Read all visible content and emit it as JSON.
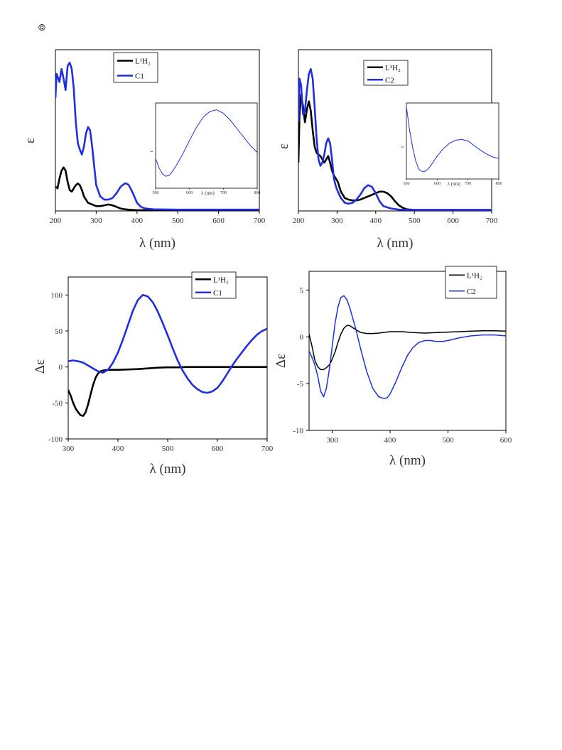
{
  "page_mark": {
    "icon": "circled-symbol-icon",
    "glyph": "⦾"
  },
  "chart_data": [
    {
      "type": "line",
      "xlabel": "λ (nm)",
      "ylabel": "ε",
      "xlim": [
        200,
        700
      ],
      "ylim": [
        0,
        1
      ],
      "y_tick_labels_shown": false,
      "x_ticks": [
        200,
        300,
        400,
        500,
        600,
        700
      ],
      "legend": {
        "placement": "top-center",
        "entries": [
          "L¹H₂",
          "C1"
        ]
      },
      "series": [
        {
          "name": "L¹H₂",
          "color": "#000000",
          "x": [
            200,
            205,
            210,
            215,
            220,
            225,
            230,
            235,
            240,
            245,
            250,
            255,
            260,
            265,
            270,
            275,
            280,
            290,
            300,
            310,
            320,
            330,
            340,
            350,
            360,
            370,
            380,
            400,
            450,
            500,
            550,
            600,
            650,
            700
          ],
          "y": [
            0.15,
            0.14,
            0.2,
            0.25,
            0.27,
            0.25,
            0.18,
            0.13,
            0.12,
            0.14,
            0.16,
            0.17,
            0.16,
            0.13,
            0.09,
            0.07,
            0.05,
            0.04,
            0.03,
            0.03,
            0.035,
            0.04,
            0.035,
            0.025,
            0.015,
            0.01,
            0.008,
            0.005,
            0.005,
            0.005,
            0.005,
            0.005,
            0.005,
            0.005
          ]
        },
        {
          "name": "C1",
          "color": "#1f2fe0",
          "x": [
            200,
            203,
            206,
            210,
            215,
            220,
            225,
            230,
            235,
            240,
            245,
            250,
            255,
            260,
            265,
            270,
            275,
            280,
            285,
            290,
            295,
            300,
            310,
            320,
            330,
            340,
            350,
            360,
            370,
            375,
            380,
            390,
            400,
            410,
            420,
            440,
            500,
            600,
            700
          ],
          "y": [
            0.7,
            0.85,
            0.83,
            0.8,
            0.88,
            0.82,
            0.75,
            0.9,
            0.92,
            0.88,
            0.76,
            0.55,
            0.42,
            0.38,
            0.35,
            0.4,
            0.48,
            0.52,
            0.5,
            0.4,
            0.28,
            0.16,
            0.09,
            0.07,
            0.07,
            0.08,
            0.11,
            0.15,
            0.17,
            0.17,
            0.16,
            0.11,
            0.05,
            0.025,
            0.015,
            0.01,
            0.008,
            0.008,
            0.008
          ]
        }
      ],
      "inset": {
        "type": "line",
        "xlabel": "λ (nm)",
        "ylabel": "ε",
        "xlim": [
          500,
          800
        ],
        "x_ticks": [
          500,
          600,
          700,
          800
        ],
        "series": [
          {
            "name": "C1",
            "color": "#1f2fe0",
            "x": [
              500,
              510,
              520,
              530,
              540,
              550,
              560,
              580,
              600,
              620,
              640,
              660,
              680,
              700,
              720,
              740,
              760,
              780,
              800
            ],
            "y": [
              0.35,
              0.24,
              0.17,
              0.14,
              0.15,
              0.2,
              0.26,
              0.4,
              0.56,
              0.71,
              0.83,
              0.9,
              0.92,
              0.88,
              0.8,
              0.7,
              0.6,
              0.5,
              0.42
            ]
          }
        ]
      }
    },
    {
      "type": "line",
      "xlabel": "λ (nm)",
      "ylabel": "ε",
      "xlim": [
        200,
        700
      ],
      "ylim": [
        0,
        1
      ],
      "y_tick_labels_shown": false,
      "x_ticks": [
        200,
        300,
        400,
        500,
        600,
        700
      ],
      "legend": {
        "placement": "top-left",
        "entries": [
          "L²H₂",
          "C2"
        ]
      },
      "series": [
        {
          "name": "L²H₂",
          "color": "#000000",
          "x": [
            200,
            203,
            207,
            212,
            217,
            222,
            227,
            232,
            237,
            242,
            247,
            252,
            257,
            262,
            267,
            272,
            277,
            282,
            287,
            292,
            297,
            302,
            310,
            320,
            330,
            340,
            350,
            360,
            370,
            380,
            390,
            400,
            410,
            420,
            430,
            440,
            450,
            460,
            470,
            480,
            500,
            550,
            600,
            650,
            700
          ],
          "y": [
            0.3,
            0.6,
            0.72,
            0.65,
            0.55,
            0.63,
            0.68,
            0.62,
            0.5,
            0.4,
            0.36,
            0.35,
            0.34,
            0.32,
            0.3,
            0.32,
            0.34,
            0.3,
            0.25,
            0.22,
            0.2,
            0.18,
            0.12,
            0.08,
            0.07,
            0.065,
            0.065,
            0.07,
            0.08,
            0.09,
            0.1,
            0.11,
            0.12,
            0.12,
            0.11,
            0.09,
            0.06,
            0.035,
            0.02,
            0.01,
            0.006,
            0.006,
            0.006,
            0.006,
            0.006
          ]
        },
        {
          "name": "C2",
          "color": "#1f2fe0",
          "x": [
            200,
            203,
            207,
            212,
            217,
            222,
            227,
            232,
            237,
            242,
            247,
            252,
            257,
            262,
            267,
            272,
            277,
            282,
            287,
            292,
            297,
            302,
            310,
            320,
            330,
            340,
            350,
            360,
            370,
            380,
            390,
            400,
            410,
            420,
            440,
            460,
            500,
            600,
            700
          ],
          "y": [
            0.55,
            0.82,
            0.78,
            0.6,
            0.62,
            0.75,
            0.85,
            0.88,
            0.82,
            0.65,
            0.45,
            0.32,
            0.28,
            0.3,
            0.35,
            0.42,
            0.45,
            0.42,
            0.32,
            0.2,
            0.15,
            0.12,
            0.08,
            0.05,
            0.045,
            0.05,
            0.07,
            0.1,
            0.14,
            0.16,
            0.15,
            0.11,
            0.06,
            0.03,
            0.015,
            0.008,
            0.006,
            0.006,
            0.006
          ]
        }
      ],
      "inset": {
        "type": "line",
        "xlabel": "λ (nm)",
        "ylabel": "ε",
        "xlim": [
          500,
          800
        ],
        "x_ticks": [
          500,
          600,
          700,
          800
        ],
        "series": [
          {
            "name": "C2",
            "color": "#1f2fe0",
            "x": [
              500,
              505,
              510,
              520,
              530,
              540,
              550,
              560,
              570,
              580,
              600,
              620,
              640,
              660,
              680,
              700,
              720,
              740,
              760,
              780,
              800
            ],
            "y": [
              0.95,
              0.8,
              0.65,
              0.42,
              0.24,
              0.13,
              0.1,
              0.1,
              0.13,
              0.18,
              0.3,
              0.4,
              0.47,
              0.51,
              0.52,
              0.5,
              0.44,
              0.38,
              0.33,
              0.29,
              0.27
            ]
          }
        ]
      }
    },
    {
      "type": "line",
      "xlabel": "λ (nm)",
      "ylabel": "Δε",
      "xlim": [
        300,
        700
      ],
      "ylim": [
        -100,
        125
      ],
      "x_ticks": [
        300,
        400,
        500,
        600,
        700
      ],
      "y_ticks": [
        -100,
        -50,
        0,
        50,
        100
      ],
      "legend": {
        "placement": "top-right",
        "entries": [
          "L¹H₂",
          "C1"
        ]
      },
      "series": [
        {
          "name": "L¹H₂",
          "color": "#000000",
          "x": [
            300,
            305,
            310,
            315,
            320,
            325,
            330,
            335,
            340,
            345,
            350,
            355,
            360,
            365,
            370,
            380,
            400,
            420,
            440,
            460,
            480,
            500,
            520,
            540,
            560,
            580,
            600,
            620,
            640,
            660,
            680,
            700
          ],
          "y": [
            -32,
            -40,
            -50,
            -58,
            -63,
            -67,
            -68,
            -63,
            -52,
            -38,
            -25,
            -15,
            -9,
            -6,
            -5,
            -4,
            -4,
            -3.5,
            -3,
            -2,
            -1,
            -0.5,
            -0.5,
            0,
            0,
            0,
            0,
            0,
            0,
            0,
            0,
            0
          ]
        },
        {
          "name": "C1",
          "color": "#1f2fe0",
          "x": [
            300,
            310,
            320,
            330,
            340,
            350,
            360,
            370,
            380,
            390,
            400,
            410,
            420,
            430,
            440,
            450,
            460,
            470,
            480,
            490,
            500,
            510,
            520,
            530,
            540,
            550,
            560,
            570,
            580,
            590,
            600,
            610,
            620,
            630,
            640,
            650,
            660,
            670,
            680,
            690,
            700
          ],
          "y": [
            8,
            9,
            8,
            6,
            2,
            -2,
            -6,
            -8,
            -4,
            6,
            20,
            38,
            58,
            78,
            93,
            100,
            98,
            90,
            77,
            61,
            44,
            26,
            9,
            -5,
            -16,
            -25,
            -31,
            -35,
            -36,
            -34,
            -29,
            -20,
            -9,
            2,
            12,
            21,
            30,
            38,
            45,
            50,
            53
          ]
        }
      ]
    },
    {
      "type": "line",
      "xlabel": "λ (nm)",
      "ylabel": "Δε",
      "xlim": [
        260,
        600
      ],
      "ylim": [
        -10,
        7
      ],
      "x_ticks": [
        300,
        400,
        500,
        600
      ],
      "y_ticks": [
        -10,
        -5,
        0,
        5
      ],
      "legend": {
        "placement": "top-left",
        "entries": [
          "L¹H₂",
          "C2"
        ]
      },
      "series": [
        {
          "name": "L¹H₂",
          "color": "#000000",
          "x": [
            260,
            265,
            270,
            275,
            280,
            285,
            290,
            295,
            300,
            305,
            310,
            315,
            320,
            325,
            330,
            335,
            340,
            345,
            350,
            360,
            370,
            380,
            400,
            420,
            440,
            460,
            480,
            500,
            520,
            540,
            560,
            580,
            600
          ],
          "y": [
            0.3,
            -1,
            -2.5,
            -3.2,
            -3.5,
            -3.5,
            -3.3,
            -3,
            -2.4,
            -1.6,
            -0.6,
            0.3,
            0.9,
            1.2,
            1.2,
            1.0,
            0.8,
            0.6,
            0.45,
            0.35,
            0.35,
            0.4,
            0.55,
            0.55,
            0.45,
            0.4,
            0.45,
            0.5,
            0.55,
            0.6,
            0.65,
            0.65,
            0.6
          ]
        },
        {
          "name": "C2",
          "color": "#1f2fe0",
          "x": [
            260,
            265,
            270,
            275,
            280,
            285,
            290,
            295,
            300,
            305,
            310,
            315,
            320,
            325,
            330,
            340,
            350,
            360,
            370,
            380,
            390,
            395,
            400,
            410,
            420,
            430,
            440,
            450,
            460,
            470,
            480,
            490,
            500,
            520,
            540,
            560,
            580,
            600
          ],
          "y": [
            -1.5,
            -2.2,
            -3,
            -4.2,
            -5.8,
            -6.4,
            -5.5,
            -3.5,
            -1,
            1.5,
            3.2,
            4.2,
            4.4,
            4,
            3.2,
            1,
            -1.5,
            -3.8,
            -5.5,
            -6.4,
            -6.6,
            -6.5,
            -6.1,
            -4.8,
            -3.3,
            -2,
            -1.1,
            -0.6,
            -0.4,
            -0.4,
            -0.5,
            -0.5,
            -0.4,
            -0.1,
            0.1,
            0.2,
            0.2,
            0.1
          ]
        }
      ]
    }
  ]
}
